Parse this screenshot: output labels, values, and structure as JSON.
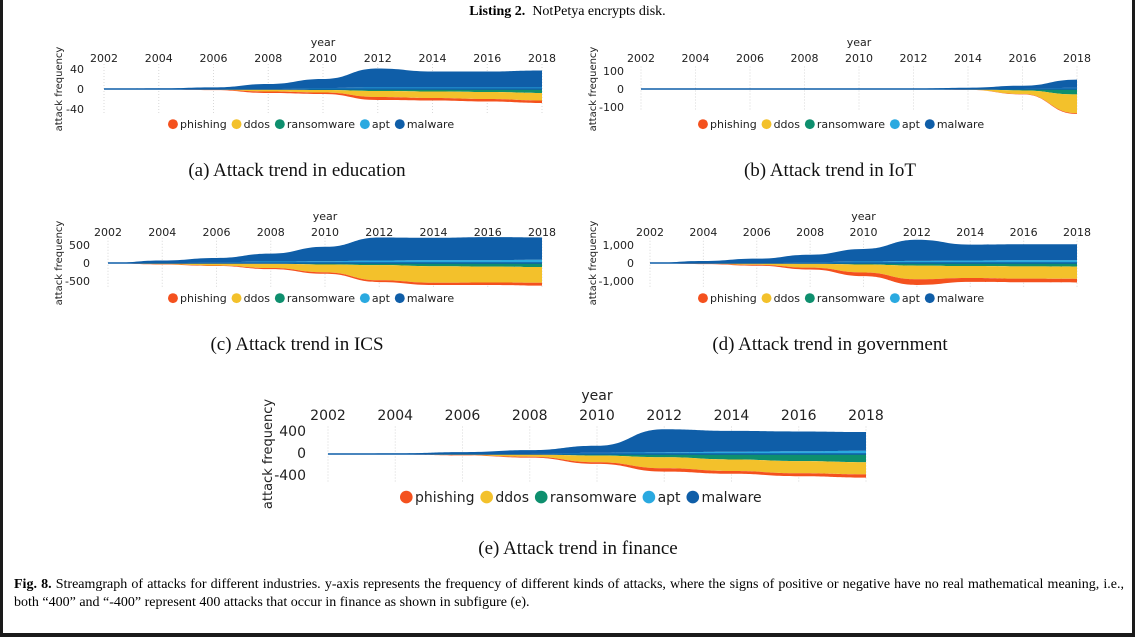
{
  "listing": {
    "label": "Listing 2.",
    "text": "NotPetya encrypts disk."
  },
  "figure": {
    "label": "Fig. 8.",
    "text": "Streamgraph of attacks for different industries. y-axis represents the frequency of different kinds of attacks, where the signs of positive or negative have no real mathematical meaning, i.e., both “400” and “-400” represent 400 attacks that occur in finance as shown in subfigure (e)."
  },
  "colors": {
    "phishing": "#f4511e",
    "ddos": "#f3c12b",
    "ransomware": "#0e8f6e",
    "apt": "#2aa9e0",
    "malware": "#0f5ea8"
  },
  "chart_data": [
    {
      "type": "area",
      "caption": "(a) Attack trend in education",
      "xlabel": "year",
      "ylabel": "attack frequency",
      "x": [
        2002,
        2004,
        2006,
        2008,
        2010,
        2012,
        2014,
        2016,
        2018
      ],
      "xticks": [
        "2002",
        "2004",
        "2006",
        "2008",
        "2010",
        "2012",
        "2014",
        "2016",
        "2018"
      ],
      "yticks": [
        40,
        0,
        -40
      ],
      "ytick_labels": [
        "40",
        "0",
        "-40"
      ],
      "ylim": [
        -50,
        50
      ],
      "legend": [
        "phishing",
        "ddos",
        "ransomware",
        "apt",
        "malware"
      ],
      "series": [
        {
          "name": "phishing",
          "values": [
            0,
            0.3,
            0.8,
            3,
            3,
            6,
            5,
            5,
            5
          ]
        },
        {
          "name": "ddos",
          "values": [
            0,
            0.4,
            1.2,
            4,
            5,
            12,
            13,
            14,
            15
          ]
        },
        {
          "name": "ransomware",
          "values": [
            0,
            0,
            0.2,
            1,
            2,
            4,
            5,
            6,
            8
          ]
        },
        {
          "name": "apt",
          "values": [
            0,
            0.2,
            0.3,
            1,
            2,
            3,
            3,
            3,
            3
          ]
        },
        {
          "name": "malware",
          "values": [
            0.2,
            1,
            3,
            9,
            18,
            38,
            32,
            32,
            34
          ]
        }
      ]
    },
    {
      "type": "area",
      "caption": "(b) Attack trend in IoT",
      "xlabel": "year",
      "ylabel": "attack frequency",
      "x": [
        2002,
        2004,
        2006,
        2008,
        2010,
        2012,
        2014,
        2016,
        2018
      ],
      "xticks": [
        "2002",
        "2004",
        "2006",
        "2008",
        "2010",
        "2012",
        "2014",
        "2016",
        "2018"
      ],
      "yticks": [
        100,
        0,
        -100
      ],
      "ytick_labels": [
        "100",
        "0",
        "-100"
      ],
      "ylim": [
        -125,
        125
      ],
      "legend": [
        "phishing",
        "ddos",
        "ransomware",
        "apt",
        "malware"
      ],
      "series": [
        {
          "name": "phishing",
          "values": [
            0,
            0,
            0,
            0,
            0,
            0.5,
            1,
            2,
            4
          ]
        },
        {
          "name": "ddos",
          "values": [
            0,
            0,
            0,
            0,
            0.5,
            1,
            3,
            20,
            105
          ]
        },
        {
          "name": "ransomware",
          "values": [
            0,
            0,
            0,
            0,
            0,
            0,
            1,
            8,
            30
          ]
        },
        {
          "name": "apt",
          "values": [
            0,
            0,
            0,
            0,
            0,
            0.5,
            1,
            3,
            6
          ]
        },
        {
          "name": "malware",
          "values": [
            0,
            0,
            0,
            0.5,
            1,
            2,
            6,
            15,
            46
          ]
        }
      ]
    },
    {
      "type": "area",
      "caption": "(c) Attack trend in ICS",
      "xlabel": "year",
      "ylabel": "attack frequency",
      "x": [
        2002,
        2004,
        2006,
        2008,
        2010,
        2012,
        2014,
        2016,
        2018
      ],
      "xticks": [
        "2002",
        "2004",
        "2006",
        "2008",
        "2010",
        "2012",
        "2014",
        "2016",
        "2018"
      ],
      "yticks": [
        500,
        0,
        -500
      ],
      "ytick_labels": [
        "500",
        "0",
        "-500"
      ],
      "ylim": [
        -700,
        700
      ],
      "legend": [
        "phishing",
        "ddos",
        "ransomware",
        "apt",
        "malware"
      ],
      "series": [
        {
          "name": "phishing",
          "values": [
            0,
            10,
            15,
            30,
            40,
            50,
            60,
            70,
            80
          ]
        },
        {
          "name": "ddos",
          "values": [
            0,
            30,
            60,
            120,
            220,
            420,
            460,
            440,
            440
          ]
        },
        {
          "name": "ransomware",
          "values": [
            0,
            5,
            10,
            20,
            40,
            60,
            90,
            100,
            110
          ]
        },
        {
          "name": "apt",
          "values": [
            0,
            10,
            20,
            40,
            50,
            70,
            80,
            80,
            90
          ]
        },
        {
          "name": "malware",
          "values": [
            0,
            60,
            120,
            220,
            400,
            640,
            620,
            640,
            620
          ]
        }
      ]
    },
    {
      "type": "area",
      "caption": "(d) Attack trend in government",
      "xlabel": "year",
      "ylabel": "attack frequency",
      "x": [
        2002,
        2004,
        2006,
        2008,
        2010,
        2012,
        2014,
        2016,
        2018
      ],
      "xticks": [
        "2002",
        "2004",
        "2006",
        "2008",
        "2010",
        "2012",
        "2014",
        "2016",
        "2018"
      ],
      "yticks": [
        1000,
        0,
        -1000
      ],
      "ytick_labels": [
        "1,000",
        "0",
        "-1,000"
      ],
      "ylim": [
        -1400,
        1400
      ],
      "legend": [
        "phishing",
        "ddos",
        "ransomware",
        "apt",
        "malware"
      ],
      "series": [
        {
          "name": "phishing",
          "values": [
            0,
            20,
            50,
            100,
            200,
            320,
            220,
            200,
            200
          ]
        },
        {
          "name": "ddos",
          "values": [
            0,
            30,
            80,
            220,
            450,
            750,
            660,
            680,
            680
          ]
        },
        {
          "name": "ransomware",
          "values": [
            0,
            10,
            20,
            40,
            80,
            150,
            170,
            190,
            200
          ]
        },
        {
          "name": "apt",
          "values": [
            0,
            10,
            20,
            40,
            80,
            120,
            140,
            160,
            160
          ]
        },
        {
          "name": "malware",
          "values": [
            0,
            100,
            220,
            420,
            700,
            1170,
            880,
            880,
            880
          ]
        }
      ]
    },
    {
      "type": "area",
      "caption": "(e) Attack trend in finance",
      "xlabel": "year",
      "ylabel": "attack frequency",
      "x": [
        2002,
        2004,
        2006,
        2008,
        2010,
        2012,
        2014,
        2016,
        2018
      ],
      "xticks": [
        "2002",
        "2004",
        "2006",
        "2008",
        "2010",
        "2012",
        "2014",
        "2016",
        "2018"
      ],
      "yticks": [
        400,
        0,
        -400
      ],
      "ytick_labels": [
        "400",
        "0",
        "-400"
      ],
      "ylim": [
        -500,
        500
      ],
      "legend": [
        "phishing",
        "ddos",
        "ransomware",
        "apt",
        "malware"
      ],
      "series": [
        {
          "name": "phishing",
          "values": [
            0,
            3,
            8,
            15,
            30,
            60,
            50,
            55,
            60
          ]
        },
        {
          "name": "ddos",
          "values": [
            0,
            5,
            15,
            40,
            120,
            200,
            210,
            220,
            220
          ]
        },
        {
          "name": "ransomware",
          "values": [
            0,
            2,
            5,
            10,
            30,
            60,
            100,
            130,
            150
          ]
        },
        {
          "name": "apt",
          "values": [
            0,
            2,
            5,
            10,
            20,
            30,
            40,
            50,
            60
          ]
        },
        {
          "name": "malware",
          "values": [
            0,
            10,
            30,
            60,
            130,
            420,
            380,
            360,
            340
          ]
        }
      ]
    }
  ]
}
